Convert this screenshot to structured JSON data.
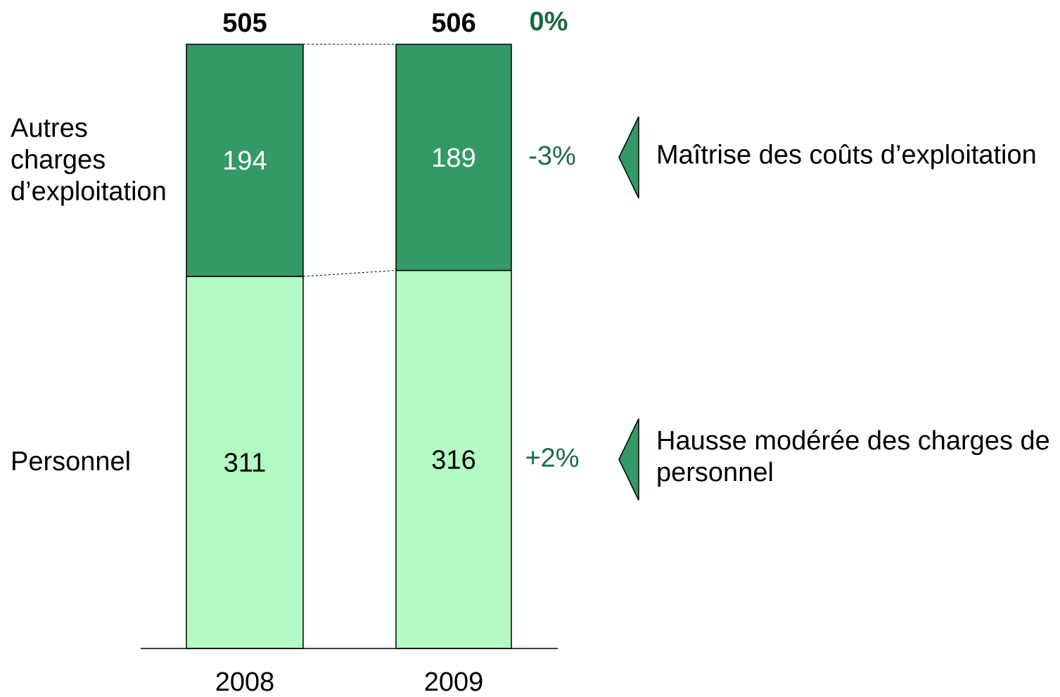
{
  "chart_data": {
    "type": "stacked-bar",
    "categories": [
      "2008",
      "2009"
    ],
    "series": [
      {
        "name": "Personnel",
        "color": "#b3f9c3",
        "values": [
          311,
          316
        ],
        "change_label": "+2%"
      },
      {
        "name": "Autres charges d’exploitation",
        "color": "#339966",
        "values": [
          194,
          189
        ],
        "change_label": "-3%"
      }
    ],
    "totals": [
      505,
      506
    ],
    "total_change_label": "0%",
    "annotations": [
      "Hausse modérée des charges de personnel",
      "Maîtrise des coûts d’exploitation"
    ]
  }
}
